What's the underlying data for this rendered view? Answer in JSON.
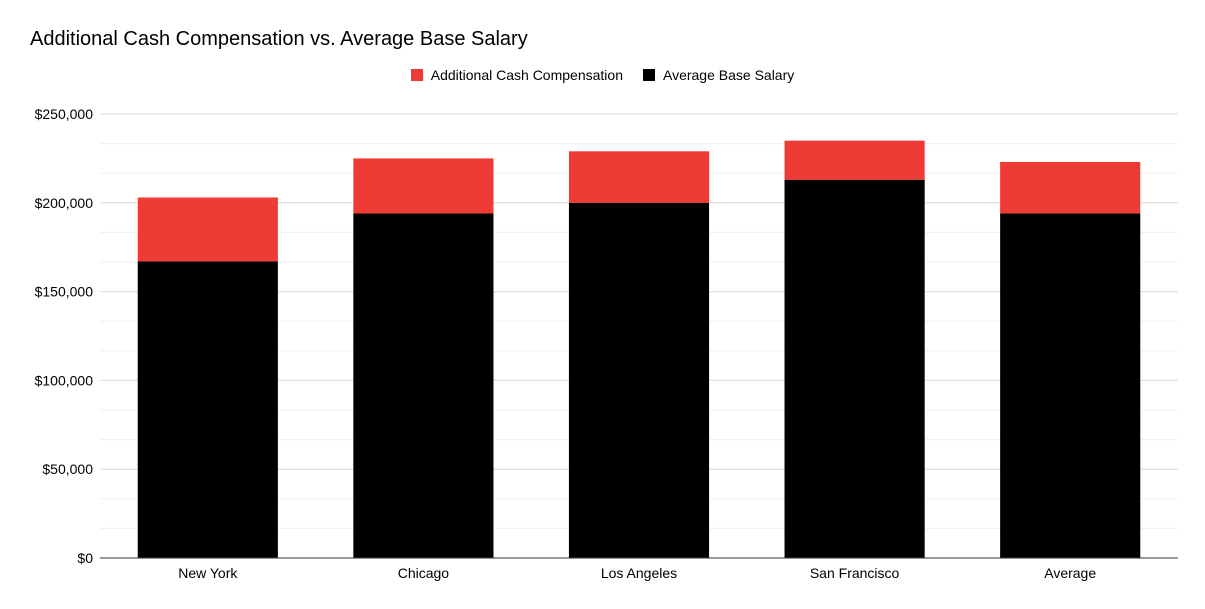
{
  "chart_data": {
    "type": "bar",
    "stacked": true,
    "title": "Additional Cash Compensation vs. Average Base Salary",
    "categories": [
      "New York",
      "Chicago",
      "Los Angeles",
      "San Francisco",
      "Average"
    ],
    "series": [
      {
        "name": "Average Base Salary",
        "color": "#000000",
        "values": [
          167000,
          194000,
          200000,
          213000,
          194000
        ]
      },
      {
        "name": "Additional Cash Compensation",
        "color": "#ef3b36",
        "values": [
          36000,
          31000,
          29000,
          22000,
          29000
        ]
      }
    ],
    "legend_order": [
      "Additional Cash Compensation",
      "Average Base Salary"
    ],
    "legend_position": "top-center",
    "ylim": [
      0,
      250000
    ],
    "ytick_values": [
      0,
      50000,
      100000,
      150000,
      200000,
      250000
    ],
    "ytick_labels": [
      "$0",
      "$50,000",
      "$100,000",
      "$150,000",
      "$200,000",
      "$250,000"
    ],
    "grid": true,
    "minor_grid": true,
    "xlabel": "",
    "ylabel": ""
  }
}
